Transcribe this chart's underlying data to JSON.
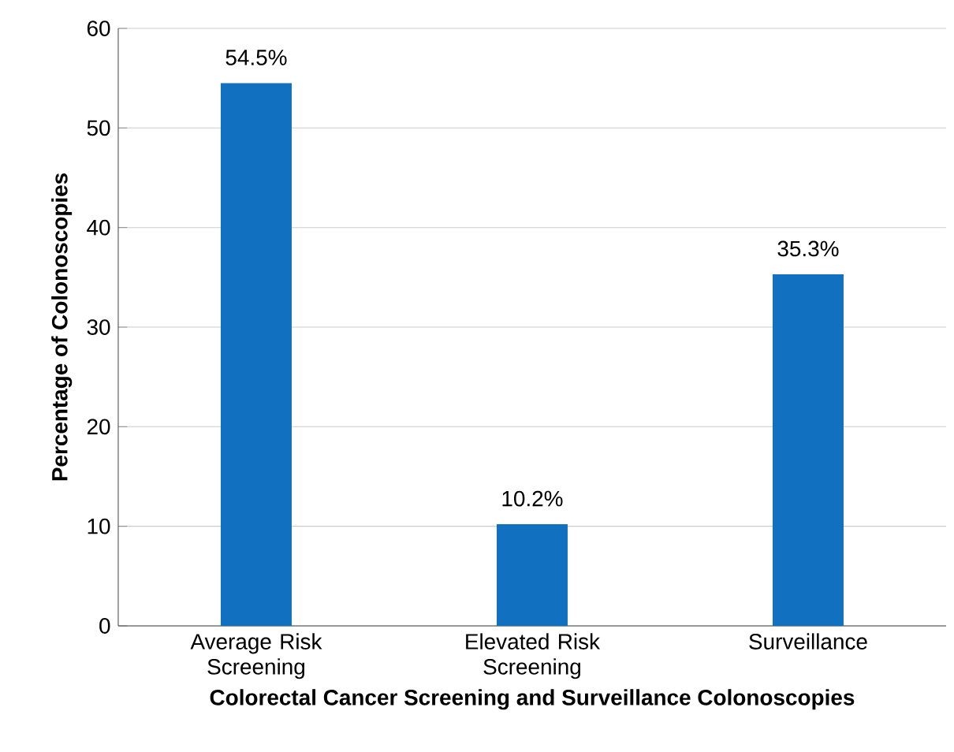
{
  "chart_data": {
    "type": "bar",
    "xlabel": "Colorectal Cancer Screening and Surveillance  Colonoscopies",
    "ylabel": "Percentage of Colonoscopies",
    "categories": [
      "Average Risk Screening",
      "Elevated Risk Screening",
      "Surveillance"
    ],
    "values": [
      54.5,
      10.2,
      35.3
    ],
    "value_labels": [
      "54.5%",
      "10.2%",
      "35.3%"
    ],
    "color": "#1170c0",
    "ylim": [
      0,
      60
    ],
    "yticks": [
      0,
      10,
      20,
      30,
      40,
      50,
      60
    ],
    "grid": "y"
  }
}
